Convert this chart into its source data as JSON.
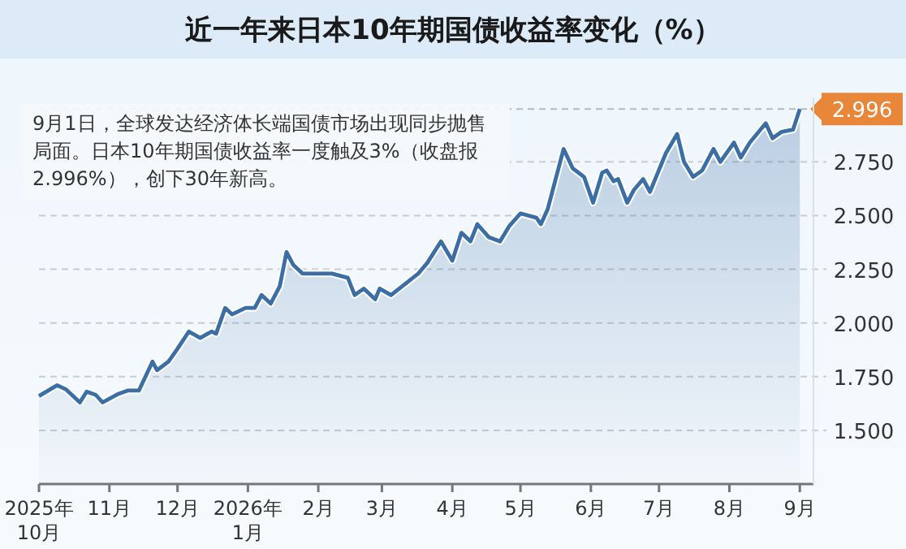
{
  "chart_data": {
    "type": "area",
    "title": "近一年来日本10年期国债收益率变化（%）",
    "annotations": [
      "9月1日，全球发达经济体长端国债市场出现同步抛售局面。日本10年期国债收益率一度触及3%（收盘报2.996%），创下30年新高。"
    ],
    "x": [
      "2025-10-01",
      "2025-10-09",
      "2025-10-13",
      "2025-10-19",
      "2025-10-22",
      "2025-10-26",
      "2025-10-29",
      "2025-11-05",
      "2025-11-09",
      "2025-11-14",
      "2025-11-20",
      "2025-11-22",
      "2025-11-27",
      "2025-12-01",
      "2025-12-06",
      "2025-12-11",
      "2025-12-16",
      "2025-12-18",
      "2025-12-22",
      "2025-12-25",
      "2025-12-31",
      "2026-01-04",
      "2026-01-07",
      "2026-01-11",
      "2026-01-15",
      "2026-01-18",
      "2026-01-21",
      "2026-01-25",
      "2026-02-07",
      "2026-02-14",
      "2026-02-17",
      "2026-02-21",
      "2026-02-26",
      "2026-02-28",
      "2026-03-05",
      "2026-03-11",
      "2026-03-17",
      "2026-03-21",
      "2026-03-24",
      "2026-03-27",
      "2026-04-01",
      "2026-04-05",
      "2026-04-09",
      "2026-04-12",
      "2026-04-17",
      "2026-04-22",
      "2026-04-26",
      "2026-05-01",
      "2026-05-08",
      "2026-05-10",
      "2026-05-13",
      "2026-05-20",
      "2026-05-24",
      "2026-05-29",
      "2026-06-02",
      "2026-06-06",
      "2026-06-08",
      "2026-06-11",
      "2026-06-13",
      "2026-06-17",
      "2026-06-20",
      "2026-06-24",
      "2026-06-27",
      "2026-07-04",
      "2026-07-09",
      "2026-07-12",
      "2026-07-16",
      "2026-07-20",
      "2026-07-25",
      "2026-07-28",
      "2026-08-03",
      "2026-08-06",
      "2026-08-10",
      "2026-08-17",
      "2026-08-20",
      "2026-08-24",
      "2026-08-29",
      "2026-09-01"
    ],
    "series": [
      {
        "color": "#3a6ea5",
        "values": [
          1.66,
          1.71,
          1.69,
          1.63,
          1.68,
          1.665,
          1.63,
          1.67,
          1.685,
          1.685,
          1.82,
          1.78,
          1.82,
          1.88,
          1.96,
          1.93,
          1.96,
          1.95,
          2.07,
          2.04,
          2.07,
          2.07,
          2.13,
          2.09,
          2.17,
          2.33,
          2.27,
          2.23,
          2.23,
          2.21,
          2.13,
          2.16,
          2.11,
          2.16,
          2.13,
          2.18,
          2.23,
          2.28,
          2.33,
          2.38,
          2.29,
          2.42,
          2.38,
          2.46,
          2.4,
          2.38,
          2.45,
          2.51,
          2.49,
          2.46,
          2.53,
          2.81,
          2.72,
          2.68,
          2.56,
          2.7,
          2.71,
          2.66,
          2.67,
          2.56,
          2.62,
          2.67,
          2.61,
          2.79,
          2.88,
          2.75,
          2.68,
          2.71,
          2.81,
          2.75,
          2.84,
          2.77,
          2.84,
          2.93,
          2.86,
          2.89,
          2.9,
          2.996
        ]
      }
    ],
    "xlim": [
      "2025-10-01",
      "2026-09-07"
    ],
    "xticks": [
      {
        "value": "2025-10-01",
        "label": "2025年\n10月"
      },
      {
        "value": "2025-11-01",
        "label": "11月"
      },
      {
        "value": "2025-12-01",
        "label": "12月"
      },
      {
        "value": "2026-01-01",
        "label": "2026年\n1月"
      },
      {
        "value": "2026-02-01",
        "label": "2月"
      },
      {
        "value": "2026-03-01",
        "label": "3月"
      },
      {
        "value": "2026-04-01",
        "label": "4月"
      },
      {
        "value": "2026-05-01",
        "label": "5月"
      },
      {
        "value": "2026-06-01",
        "label": "6月"
      },
      {
        "value": "2026-07-01",
        "label": "7月"
      },
      {
        "value": "2026-08-01",
        "label": "8月"
      },
      {
        "value": "2026-09-01",
        "label": "9月"
      }
    ],
    "ylim": [
      1.25,
      3.05
    ],
    "yticks": [
      {
        "value": 1.5,
        "label": "1.500"
      },
      {
        "value": 1.75,
        "label": "1.750"
      },
      {
        "value": 2,
        "label": "2.000"
      },
      {
        "value": 2.25,
        "label": "2.250"
      },
      {
        "value": 2.5,
        "label": "2.500"
      },
      {
        "value": 2.75,
        "label": "2.750"
      }
    ],
    "ref_lines": [
      {
        "axis": "y",
        "value": 2.996,
        "label": "2.996",
        "line_style": "dashed"
      }
    ],
    "grid": "y"
  }
}
